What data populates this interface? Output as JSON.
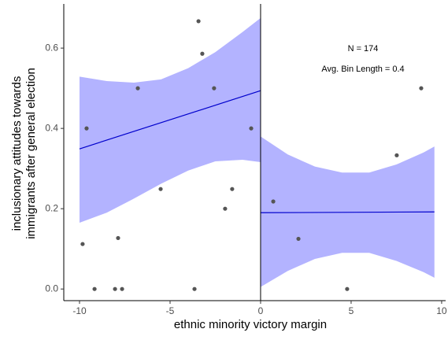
{
  "chart_data": {
    "type": "scatter",
    "x_label": "ethnic minority victory margin",
    "y_label": [
      "inclusionary attitudes towards",
      "immigrants after general election"
    ],
    "annotations": [
      "N = 174",
      "Avg. Bin Length = 0.4"
    ],
    "xlim": [
      -10.87,
      10.22
    ],
    "ylim": [
      -0.029,
      0.71
    ],
    "xticks": [
      -10,
      -5,
      0,
      5,
      10
    ],
    "yticks": [
      {
        "value": 0,
        "label": "0.0"
      },
      0.2,
      0.4,
      0.6
    ],
    "cutoff": 0,
    "point_color": "#555555",
    "line_color": "#0000cc",
    "band_color": "#b3b3ff",
    "points": {
      "x": [
        -9.83,
        -9.61,
        -9.17,
        -8.04,
        -7.87,
        -7.65,
        -6.78,
        -5.52,
        -3.65,
        -3.43,
        -3.22,
        -2.57,
        -1.96,
        -1.57,
        -0.52,
        0.7,
        2.09,
        4.78,
        7.52,
        8.87
      ],
      "values": [
        0.112,
        0.4,
        0,
        0,
        0.127,
        0,
        0.5,
        0.249,
        0,
        0.667,
        0.586,
        0.5,
        0.2,
        0.249,
        0.4,
        0.218,
        0.125,
        0,
        0.333,
        0.5
      ]
    },
    "fits": [
      {
        "x": [
          -10,
          0
        ],
        "values": [
          0.349,
          0.494
        ]
      },
      {
        "x": [
          0,
          9.6
        ],
        "values": [
          0.19,
          0.192
        ]
      }
    ],
    "bands": [
      {
        "x": [
          -10,
          -8.5,
          -7,
          -5.5,
          -4,
          -2.5,
          -1,
          0
        ],
        "upper": [
          0.529,
          0.518,
          0.514,
          0.522,
          0.55,
          0.59,
          0.64,
          0.675
        ],
        "lower": [
          0.165,
          0.19,
          0.225,
          0.262,
          0.295,
          0.318,
          0.322,
          0.316
        ]
      },
      {
        "x": [
          0,
          1.5,
          3,
          4.5,
          6,
          7.5,
          9,
          9.6
        ],
        "upper": [
          0.38,
          0.335,
          0.305,
          0.29,
          0.29,
          0.31,
          0.34,
          0.355
        ],
        "lower": [
          0.005,
          0.045,
          0.075,
          0.09,
          0.09,
          0.07,
          0.042,
          0.028
        ]
      }
    ]
  }
}
